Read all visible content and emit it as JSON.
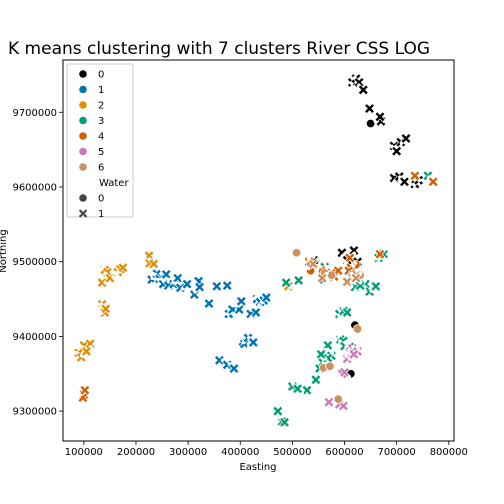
{
  "chart_data": {
    "type": "scatter",
    "title": "K means clustering with 7 clusters River CSS LOG",
    "xlabel": "Easting",
    "ylabel": "Northing",
    "xlim": [
      60000,
      810000
    ],
    "ylim": [
      9260000,
      9770000
    ],
    "xticks": [
      100000,
      200000,
      300000,
      400000,
      500000,
      600000,
      700000,
      800000
    ],
    "xtick_labels": [
      "100000",
      "200000",
      "300000",
      "400000",
      "500000",
      "600000",
      "700000",
      "800000"
    ],
    "yticks": [
      9300000,
      9400000,
      9500000,
      9600000,
      9700000
    ],
    "ytick_labels": [
      "9300000",
      "9400000",
      "9500000",
      "9600000",
      "9700000"
    ],
    "legend": {
      "placement": "upper-left",
      "hue_items": [
        "0",
        "1",
        "2",
        "3",
        "4",
        "5",
        "6"
      ],
      "style_title": "Water",
      "style_items": [
        {
          "label": "0",
          "marker": "circle"
        },
        {
          "label": "1",
          "marker": "x"
        }
      ]
    },
    "colors": {
      "0": "#000000",
      "1": "#0173b2",
      "2": "#de8f05",
      "3": "#029e73",
      "4": "#d55e00",
      "5": "#cc78bc",
      "6": "#ca9161"
    },
    "series": [
      {
        "name": "0",
        "points": [
          [
            545000,
            9502000,
            0
          ],
          [
            650000,
            9685000,
            0
          ],
          [
            620000,
            9415000,
            0
          ],
          [
            612000,
            9350000,
            0
          ],
          [
            615000,
            9740000,
            1
          ],
          [
            622000,
            9745000,
            1
          ],
          [
            628000,
            9740000,
            1
          ],
          [
            636000,
            9730000,
            1
          ],
          [
            648000,
            9705000,
            1
          ],
          [
            670000,
            9688000,
            1
          ],
          [
            668000,
            9694000,
            1
          ],
          [
            695000,
            9655000,
            1
          ],
          [
            700000,
            9648000,
            1
          ],
          [
            708000,
            9660000,
            1
          ],
          [
            718000,
            9665000,
            1
          ],
          [
            695000,
            9612000,
            1
          ],
          [
            705000,
            9614000,
            1
          ],
          [
            715000,
            9607000,
            1
          ],
          [
            735000,
            9604000,
            1
          ],
          [
            742000,
            9609000,
            1
          ],
          [
            595000,
            9512000,
            1
          ],
          [
            618000,
            9515000,
            1
          ],
          [
            605000,
            9502000,
            1
          ],
          [
            625000,
            9500000,
            1
          ]
        ]
      },
      {
        "name": "1",
        "points": [
          [
            230000,
            9476000,
            1
          ],
          [
            240000,
            9484000,
            1
          ],
          [
            245000,
            9477000,
            1
          ],
          [
            252000,
            9470000,
            1
          ],
          [
            258000,
            9483000,
            1
          ],
          [
            262000,
            9468000,
            1
          ],
          [
            272000,
            9470000,
            1
          ],
          [
            280000,
            9478000,
            1
          ],
          [
            285000,
            9465000,
            1
          ],
          [
            298000,
            9470000,
            1
          ],
          [
            312000,
            9456000,
            1
          ],
          [
            320000,
            9474000,
            1
          ],
          [
            322000,
            9466000,
            1
          ],
          [
            340000,
            9444000,
            1
          ],
          [
            355000,
            9467000,
            1
          ],
          [
            375000,
            9468000,
            1
          ],
          [
            378000,
            9430000,
            1
          ],
          [
            385000,
            9436000,
            1
          ],
          [
            398000,
            9436000,
            1
          ],
          [
            402000,
            9447000,
            1
          ],
          [
            405000,
            9393000,
            1
          ],
          [
            408000,
            9390000,
            1
          ],
          [
            415000,
            9398000,
            1
          ],
          [
            420000,
            9430000,
            1
          ],
          [
            425000,
            9392000,
            1
          ],
          [
            430000,
            9432000,
            1
          ],
          [
            432000,
            9450000,
            1
          ],
          [
            438000,
            9446000,
            1
          ],
          [
            445000,
            9448000,
            1
          ],
          [
            450000,
            9452000,
            1
          ],
          [
            360000,
            9368000,
            1
          ],
          [
            375000,
            9362000,
            1
          ],
          [
            388000,
            9357000,
            1
          ]
        ]
      },
      {
        "name": "2",
        "points": [
          [
            225000,
            9508000,
            1
          ],
          [
            226000,
            9498000,
            1
          ],
          [
            234000,
            9497000,
            1
          ],
          [
            140000,
            9489000,
            1
          ],
          [
            145000,
            9486000,
            1
          ],
          [
            135000,
            9472000,
            1
          ],
          [
            150000,
            9478000,
            1
          ],
          [
            165000,
            9486000,
            1
          ],
          [
            170000,
            9490000,
            1
          ],
          [
            175000,
            9492000,
            1
          ],
          [
            135000,
            9443000,
            1
          ],
          [
            140000,
            9432000,
            1
          ],
          [
            142000,
            9437000,
            1
          ],
          [
            100000,
            9388000,
            1
          ],
          [
            112000,
            9390000,
            1
          ],
          [
            90000,
            9378000,
            1
          ],
          [
            95000,
            9372000,
            1
          ],
          [
            105000,
            9380000,
            1
          ],
          [
            492000,
            9467000,
            1
          ]
        ]
      },
      {
        "name": "3",
        "points": [
          [
            488000,
            9472000,
            1
          ],
          [
            512000,
            9475000,
            1
          ],
          [
            562000,
            9493000,
            1
          ],
          [
            560000,
            9476000,
            1
          ],
          [
            590000,
            9430000,
            1
          ],
          [
            598000,
            9434000,
            1
          ],
          [
            605000,
            9432000,
            1
          ],
          [
            620000,
            9466000,
            1
          ],
          [
            640000,
            9470000,
            1
          ],
          [
            648000,
            9460000,
            1
          ],
          [
            660000,
            9467000,
            1
          ],
          [
            665000,
            9505000,
            1
          ],
          [
            675000,
            9510000,
            1
          ],
          [
            592000,
            9396000,
            1
          ],
          [
            598000,
            9394000,
            1
          ],
          [
            568000,
            9388000,
            1
          ],
          [
            575000,
            9374000,
            1
          ],
          [
            558000,
            9365000,
            1
          ],
          [
            552000,
            9357000,
            1
          ],
          [
            545000,
            9342000,
            1
          ],
          [
            528000,
            9328000,
            1
          ],
          [
            500000,
            9333000,
            1
          ],
          [
            510000,
            9330000,
            1
          ],
          [
            472000,
            9300000,
            1
          ],
          [
            480000,
            9286000,
            1
          ],
          [
            485000,
            9285000,
            1
          ],
          [
            568000,
            9371000,
            1
          ],
          [
            555000,
            9376000,
            1
          ],
          [
            600000,
            9387000,
            1
          ],
          [
            610000,
            9386000,
            1
          ],
          [
            760000,
            9615000,
            1
          ],
          [
            630000,
            9468000,
            1
          ]
        ]
      },
      {
        "name": "4",
        "points": [
          [
            535000,
            9488000,
            0
          ],
          [
            622000,
            9496000,
            0
          ],
          [
            532000,
            9500000,
            1
          ],
          [
            555000,
            9488000,
            1
          ],
          [
            575000,
            9485000,
            1
          ],
          [
            580000,
            9480000,
            1
          ],
          [
            588000,
            9488000,
            1
          ],
          [
            610000,
            9505000,
            1
          ],
          [
            612000,
            9492000,
            1
          ],
          [
            668000,
            9510000,
            1
          ],
          [
            735000,
            9615000,
            1
          ],
          [
            770000,
            9607000,
            1
          ],
          [
            100000,
            9322000,
            1
          ],
          [
            98000,
            9318000,
            1
          ],
          [
            102000,
            9328000,
            1
          ],
          [
            608000,
            9488000,
            1
          ]
        ]
      },
      {
        "name": "5",
        "points": [
          [
            595000,
            9350000,
            1
          ],
          [
            600000,
            9352000,
            1
          ],
          [
            605000,
            9370000,
            1
          ],
          [
            612000,
            9380000,
            1
          ],
          [
            615000,
            9384000,
            1
          ],
          [
            625000,
            9380000,
            1
          ],
          [
            618000,
            9376000,
            1
          ],
          [
            570000,
            9312000,
            1
          ],
          [
            590000,
            9309000,
            1
          ],
          [
            598000,
            9307000,
            1
          ]
        ]
      },
      {
        "name": "6",
        "points": [
          [
            508000,
            9512000,
            0
          ],
          [
            535000,
            9497000,
            0
          ],
          [
            562000,
            9485000,
            0
          ],
          [
            575000,
            9482000,
            0
          ],
          [
            615000,
            9483000,
            0
          ],
          [
            630000,
            9482000,
            0
          ],
          [
            625000,
            9410000,
            0
          ],
          [
            560000,
            9358000,
            0
          ],
          [
            572000,
            9360000,
            0
          ],
          [
            588000,
            9316000,
            0
          ],
          [
            557000,
            9478000,
            1
          ],
          [
            540000,
            9497000,
            1
          ],
          [
            605000,
            9473000,
            1
          ],
          [
            622000,
            9478000,
            1
          ]
        ]
      }
    ]
  }
}
